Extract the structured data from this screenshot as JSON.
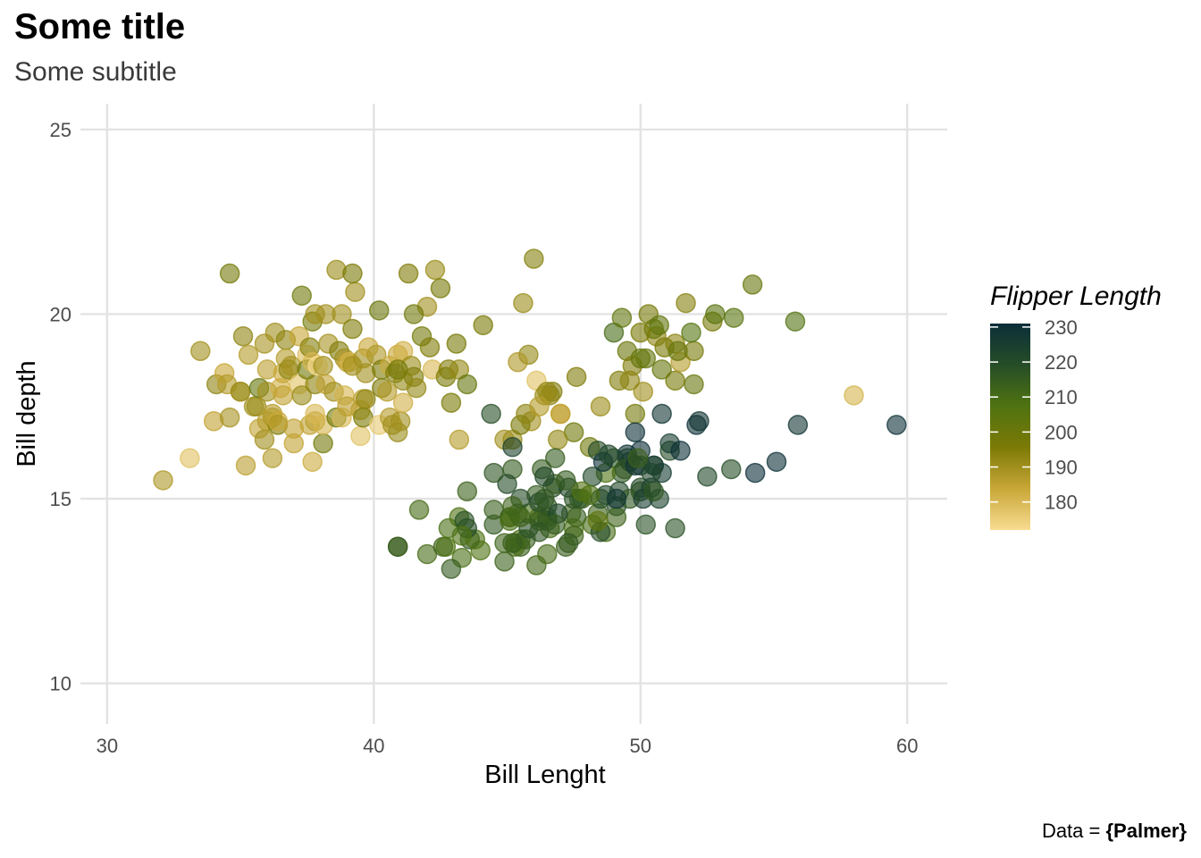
{
  "chart_data": {
    "type": "scatter",
    "title": "Some title",
    "subtitle": "Some subtitle",
    "xlabel": "Bill Lenght",
    "ylabel": "Bill depth",
    "xlim": [
      29,
      61.5
    ],
    "ylim": [
      8.9,
      25.7
    ],
    "x_ticks": [
      "30",
      "40",
      "50",
      "60"
    ],
    "y_ticks": [
      "10",
      "15",
      "20",
      "25"
    ],
    "grid": true,
    "legend": {
      "title": "Flipper Length",
      "position": "right",
      "type": "colorbar",
      "range": [
        172,
        231
      ],
      "ticks": [
        "180",
        "190",
        "200",
        "210",
        "220",
        "230"
      ],
      "colors": [
        "#f8dc91",
        "#c9a737",
        "#7c7a06",
        "#4f7311",
        "#264d27",
        "#0b2e39"
      ]
    },
    "caption_prefix": "Data = ",
    "caption_source": "{Palmer}",
    "points": [
      [
        32.1,
        15.5,
        188
      ],
      [
        33.1,
        16.1,
        178
      ],
      [
        33.5,
        19.0,
        190
      ],
      [
        34.0,
        17.1,
        185
      ],
      [
        34.1,
        18.1,
        193
      ],
      [
        34.4,
        18.4,
        184
      ],
      [
        34.5,
        18.1,
        187
      ],
      [
        34.6,
        21.1,
        198
      ],
      [
        34.6,
        17.2,
        189
      ],
      [
        35.0,
        17.9,
        192
      ],
      [
        35.0,
        17.9,
        190
      ],
      [
        35.1,
        19.4,
        193
      ],
      [
        35.2,
        15.9,
        186
      ],
      [
        35.3,
        18.9,
        187
      ],
      [
        35.5,
        17.5,
        190
      ],
      [
        35.6,
        17.5,
        191
      ],
      [
        35.7,
        16.9,
        185
      ],
      [
        35.7,
        18.0,
        202
      ],
      [
        35.9,
        16.6,
        190
      ],
      [
        35.9,
        19.2,
        189
      ],
      [
        36.0,
        17.9,
        190
      ],
      [
        36.0,
        18.5,
        186
      ],
      [
        36.0,
        17.1,
        187
      ],
      [
        36.2,
        16.1,
        187
      ],
      [
        36.2,
        17.2,
        187
      ],
      [
        36.2,
        17.3,
        187
      ],
      [
        36.3,
        19.5,
        190
      ],
      [
        36.4,
        17.0,
        195
      ],
      [
        36.4,
        17.1,
        184
      ],
      [
        36.5,
        18.0,
        182
      ],
      [
        36.6,
        17.8,
        185
      ],
      [
        36.6,
        18.4,
        184
      ],
      [
        36.7,
        19.3,
        193
      ],
      [
        36.7,
        18.8,
        187
      ],
      [
        36.8,
        18.5,
        193
      ],
      [
        36.9,
        18.6,
        189
      ],
      [
        37.0,
        16.9,
        185
      ],
      [
        37.0,
        16.5,
        185
      ],
      [
        37.2,
        18.1,
        178
      ],
      [
        37.2,
        19.4,
        184
      ],
      [
        37.3,
        17.8,
        191
      ],
      [
        37.3,
        20.5,
        199
      ],
      [
        37.5,
        18.9,
        179
      ],
      [
        37.5,
        18.5,
        199
      ],
      [
        37.6,
        17.0,
        185
      ],
      [
        37.6,
        19.1,
        194
      ],
      [
        37.7,
        16.0,
        183
      ],
      [
        37.7,
        18.7,
        180
      ],
      [
        37.7,
        19.8,
        198
      ],
      [
        37.8,
        17.1,
        186
      ],
      [
        37.8,
        18.1,
        193
      ],
      [
        37.8,
        20.0,
        190
      ],
      [
        37.8,
        17.3,
        180
      ],
      [
        37.9,
        18.6,
        172
      ],
      [
        38.1,
        18.6,
        190
      ],
      [
        38.1,
        16.5,
        198
      ],
      [
        38.1,
        17.0,
        181
      ],
      [
        38.2,
        18.1,
        185
      ],
      [
        38.2,
        20.0,
        190
      ],
      [
        38.3,
        19.2,
        189
      ],
      [
        38.5,
        17.9,
        190
      ],
      [
        38.6,
        21.2,
        191
      ],
      [
        38.6,
        17.2,
        199
      ],
      [
        38.7,
        19.0,
        195
      ],
      [
        38.8,
        17.2,
        180
      ],
      [
        38.8,
        20.0,
        190
      ],
      [
        38.9,
        17.8,
        181
      ],
      [
        38.9,
        18.8,
        190
      ],
      [
        39.0,
        17.5,
        186
      ],
      [
        39.0,
        18.7,
        185
      ],
      [
        39.1,
        18.7,
        181
      ],
      [
        39.2,
        19.6,
        195
      ],
      [
        39.2,
        18.6,
        190
      ],
      [
        39.3,
        20.6,
        190
      ],
      [
        39.5,
        17.4,
        186
      ],
      [
        39.5,
        16.7,
        178
      ],
      [
        39.6,
        17.7,
        186
      ],
      [
        39.6,
        18.8,
        190
      ],
      [
        39.6,
        17.2,
        196
      ],
      [
        39.7,
        18.4,
        190
      ],
      [
        39.7,
        17.7,
        193
      ],
      [
        39.8,
        19.1,
        184
      ],
      [
        40.1,
        18.9,
        188
      ],
      [
        40.2,
        17.0,
        176
      ],
      [
        40.2,
        20.1,
        200
      ],
      [
        40.3,
        18.0,
        195
      ],
      [
        40.3,
        18.5,
        196
      ],
      [
        40.5,
        17.9,
        187
      ],
      [
        40.6,
        18.6,
        183
      ],
      [
        40.6,
        17.2,
        187
      ],
      [
        40.7,
        17.0,
        190
      ],
      [
        40.8,
        18.4,
        195
      ],
      [
        40.9,
        16.8,
        191
      ],
      [
        40.9,
        18.9,
        184
      ],
      [
        41.0,
        17.1,
        190
      ],
      [
        41.1,
        17.6,
        182
      ],
      [
        41.1,
        19.0,
        182
      ],
      [
        41.1,
        18.2,
        192
      ],
      [
        41.3,
        21.1,
        195
      ],
      [
        41.4,
        18.6,
        191
      ],
      [
        41.5,
        18.3,
        195
      ],
      [
        41.6,
        18.0,
        192
      ],
      [
        41.8,
        19.4,
        198
      ],
      [
        42.0,
        20.2,
        190
      ],
      [
        42.1,
        19.1,
        195
      ],
      [
        42.2,
        18.5,
        180
      ],
      [
        42.3,
        21.2,
        191
      ],
      [
        42.5,
        20.7,
        197
      ],
      [
        42.7,
        18.3,
        196
      ],
      [
        42.8,
        18.5,
        195
      ],
      [
        42.9,
        17.6,
        196
      ],
      [
        43.1,
        19.2,
        197
      ],
      [
        43.2,
        18.5,
        192
      ],
      [
        43.2,
        16.6,
        187
      ],
      [
        45.6,
        20.3,
        191
      ],
      [
        45.8,
        18.9,
        192
      ],
      [
        46.0,
        21.5,
        194
      ],
      [
        44.1,
        19.7,
        196
      ],
      [
        41.5,
        20.0,
        199
      ],
      [
        40.9,
        18.5,
        198
      ],
      [
        39.2,
        21.1,
        196
      ],
      [
        46.1,
        18.2,
        178
      ],
      [
        45.2,
        16.6,
        191
      ],
      [
        46.7,
        17.9,
        195
      ],
      [
        50.3,
        20.0,
        197
      ],
      [
        51.7,
        20.3,
        194
      ],
      [
        52.0,
        18.1,
        201
      ],
      [
        49.5,
        19.0,
        200
      ],
      [
        50.6,
        19.4,
        193
      ],
      [
        51.3,
        19.2,
        193
      ],
      [
        52.7,
        19.8,
        197
      ],
      [
        53.5,
        19.9,
        205
      ],
      [
        54.2,
        20.8,
        201
      ],
      [
        55.8,
        19.8,
        207
      ],
      [
        58.0,
        17.8,
        181
      ],
      [
        50.5,
        19.6,
        201
      ],
      [
        49.2,
        18.2,
        195
      ],
      [
        50.0,
        19.5,
        196
      ],
      [
        51.3,
        18.2,
        197
      ],
      [
        51.5,
        18.7,
        187
      ],
      [
        49.8,
        17.3,
        198
      ],
      [
        48.5,
        17.5,
        191
      ],
      [
        50.9,
        19.1,
        196
      ],
      [
        50.1,
        17.9,
        190
      ],
      [
        52.0,
        19.0,
        197
      ],
      [
        50.8,
        18.5,
        201
      ],
      [
        49.7,
        18.6,
        195
      ],
      [
        51.4,
        19.0,
        201
      ],
      [
        50.7,
        19.7,
        203
      ],
      [
        47.5,
        16.8,
        199
      ],
      [
        46.9,
        16.6,
        192
      ],
      [
        46.5,
        17.9,
        192
      ],
      [
        45.9,
        17.1,
        190
      ],
      [
        46.6,
        17.8,
        193
      ],
      [
        47.0,
        17.3,
        185
      ],
      [
        45.4,
        18.7,
        188
      ],
      [
        45.5,
        17.0,
        196
      ],
      [
        49.0,
        19.5,
        210
      ],
      [
        49.3,
        19.9,
        203
      ],
      [
        52.8,
        20.0,
        205
      ],
      [
        50.0,
        18.8,
        202
      ],
      [
        49.6,
        18.2,
        193
      ],
      [
        51.9,
        19.5,
        206
      ],
      [
        50.2,
        18.8,
        202
      ],
      [
        47.6,
        18.3,
        195
      ],
      [
        46.4,
        17.8,
        191
      ],
      [
        45.7,
        17.3,
        193
      ],
      [
        43.5,
        18.1,
        202
      ],
      [
        48.1,
        16.4,
        199
      ],
      [
        44.9,
        16.6,
        190
      ],
      [
        46.2,
        17.5,
        187
      ],
      [
        40.9,
        13.7,
        214
      ],
      [
        46.1,
        13.2,
        211
      ],
      [
        50.0,
        16.3,
        230
      ],
      [
        48.7,
        14.1,
        210
      ],
      [
        50.0,
        15.2,
        218
      ],
      [
        47.6,
        14.5,
        215
      ],
      [
        46.5,
        13.5,
        210
      ],
      [
        45.4,
        14.6,
        211
      ],
      [
        46.7,
        15.3,
        219
      ],
      [
        43.3,
        13.4,
        209
      ],
      [
        46.8,
        15.4,
        215
      ],
      [
        40.9,
        13.7,
        214
      ],
      [
        49.0,
        16.1,
        216
      ],
      [
        45.5,
        13.7,
        214
      ],
      [
        48.4,
        14.6,
        213
      ],
      [
        45.8,
        14.6,
        210
      ],
      [
        49.3,
        15.7,
        217
      ],
      [
        42.0,
        13.5,
        210
      ],
      [
        49.2,
        15.2,
        221
      ],
      [
        46.2,
        14.5,
        209
      ],
      [
        48.7,
        15.1,
        222
      ],
      [
        50.2,
        14.3,
        218
      ],
      [
        45.1,
        14.5,
        215
      ],
      [
        46.5,
        14.5,
        213
      ],
      [
        46.3,
        15.8,
        215
      ],
      [
        42.9,
        13.1,
        215
      ],
      [
        46.1,
        15.1,
        215
      ],
      [
        44.5,
        14.3,
        216
      ],
      [
        47.8,
        15.0,
        215
      ],
      [
        48.2,
        14.3,
        210
      ],
      [
        50.0,
        15.3,
        220
      ],
      [
        47.3,
        15.3,
        222
      ],
      [
        42.8,
        14.2,
        209
      ],
      [
        45.1,
        14.5,
        207
      ],
      [
        59.6,
        17.0,
        230
      ],
      [
        49.1,
        14.8,
        220
      ],
      [
        48.4,
        16.3,
        220
      ],
      [
        42.6,
        13.7,
        213
      ],
      [
        44.4,
        17.3,
        219
      ],
      [
        44.0,
        13.6,
        208
      ],
      [
        48.7,
        15.7,
        208
      ],
      [
        42.7,
        13.7,
        208
      ],
      [
        49.6,
        16.0,
        225
      ],
      [
        45.3,
        13.7,
        210
      ],
      [
        49.6,
        15.0,
        216
      ],
      [
        50.5,
        15.9,
        222
      ],
      [
        43.6,
        13.9,
        217
      ],
      [
        45.5,
        13.9,
        210
      ],
      [
        50.5,
        15.9,
        225
      ],
      [
        44.9,
        13.3,
        213
      ],
      [
        45.2,
        15.8,
        215
      ],
      [
        46.6,
        14.2,
        210
      ],
      [
        48.5,
        14.1,
        220
      ],
      [
        45.1,
        14.4,
        210
      ],
      [
        50.1,
        15.0,
        225
      ],
      [
        46.5,
        14.4,
        217
      ],
      [
        45.0,
        15.4,
        220
      ],
      [
        43.8,
        13.9,
        208
      ],
      [
        45.5,
        15.0,
        220
      ],
      [
        43.2,
        14.5,
        208
      ],
      [
        50.4,
        15.3,
        224
      ],
      [
        45.3,
        13.8,
        208
      ],
      [
        46.2,
        14.9,
        221
      ],
      [
        45.7,
        13.9,
        214
      ],
      [
        54.3,
        15.7,
        231
      ],
      [
        45.8,
        14.2,
        219
      ],
      [
        49.8,
        16.8,
        230
      ],
      [
        46.2,
        14.4,
        214
      ],
      [
        49.5,
        16.2,
        229
      ],
      [
        43.5,
        14.2,
        220
      ],
      [
        50.7,
        15.0,
        223
      ],
      [
        47.7,
        15.0,
        216
      ],
      [
        46.4,
        15.6,
        221
      ],
      [
        48.2,
        15.6,
        221
      ],
      [
        46.5,
        14.8,
        217
      ],
      [
        46.4,
        15.0,
        216
      ],
      [
        48.6,
        16.0,
        230
      ],
      [
        47.5,
        14.2,
        209
      ],
      [
        51.1,
        16.3,
        220
      ],
      [
        45.2,
        13.8,
        215
      ],
      [
        45.2,
        16.4,
        223
      ],
      [
        49.1,
        14.5,
        212
      ],
      [
        52.5,
        15.6,
        221
      ],
      [
        47.4,
        14.6,
        212
      ],
      [
        50.0,
        15.9,
        224
      ],
      [
        44.9,
        13.8,
        212
      ],
      [
        50.8,
        17.3,
        228
      ],
      [
        43.4,
        14.4,
        218
      ],
      [
        51.3,
        14.2,
        218
      ],
      [
        47.5,
        14.0,
        212
      ],
      [
        52.1,
        17.0,
        230
      ],
      [
        47.5,
        15.0,
        218
      ],
      [
        52.2,
        17.1,
        228
      ],
      [
        45.5,
        14.5,
        212
      ],
      [
        49.5,
        16.1,
        224
      ],
      [
        44.5,
        14.7,
        214
      ],
      [
        50.8,
        15.7,
        226
      ],
      [
        49.4,
        15.8,
        216
      ],
      [
        46.9,
        14.6,
        222
      ],
      [
        48.4,
        14.4,
        203
      ],
      [
        51.1,
        16.5,
        225
      ],
      [
        48.5,
        15.0,
        219
      ],
      [
        55.9,
        17.0,
        228
      ],
      [
        47.2,
        15.5,
        215
      ],
      [
        49.1,
        15.0,
        228
      ],
      [
        47.3,
        13.8,
        216
      ],
      [
        46.8,
        16.1,
        215
      ],
      [
        41.7,
        14.7,
        210
      ],
      [
        53.4,
        15.8,
        219
      ],
      [
        43.3,
        14.0,
        208
      ],
      [
        48.1,
        15.1,
        209
      ],
      [
        50.5,
        15.2,
        216
      ],
      [
        49.8,
        15.9,
        229
      ],
      [
        43.5,
        15.2,
        213
      ],
      [
        51.5,
        16.3,
        230
      ],
      [
        46.2,
        14.1,
        217
      ],
      [
        55.1,
        16.0,
        230
      ],
      [
        44.5,
        15.7,
        217
      ],
      [
        48.8,
        16.2,
        222
      ],
      [
        47.2,
        13.7,
        214
      ],
      [
        46.8,
        14.3,
        215
      ],
      [
        50.4,
        15.7,
        222
      ],
      [
        45.2,
        14.8,
        212
      ],
      [
        49.9,
        16.1,
        213
      ],
      [
        47.0,
        17.3,
        185
      ],
      [
        47.8,
        15.2,
        207
      ]
    ]
  }
}
